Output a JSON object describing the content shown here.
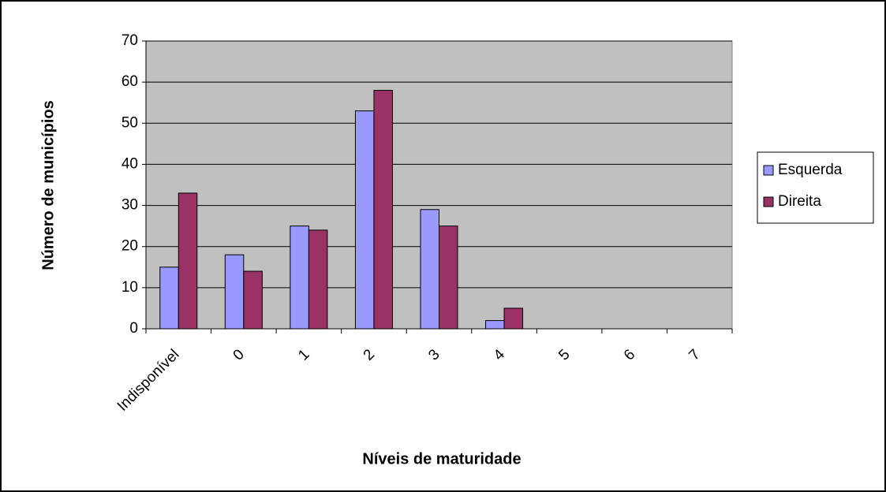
{
  "chart_data": {
    "type": "bar",
    "x_label": "Níveis de maturidade",
    "y_label": "Número de municípios",
    "categories": [
      "Indisponível",
      "0",
      "1",
      "2",
      "3",
      "4",
      "5",
      "6",
      "7"
    ],
    "series": [
      {
        "name": "Esquerda",
        "color": "#9999ff",
        "values": [
          15,
          18,
          25,
          53,
          29,
          2,
          0,
          0,
          0
        ]
      },
      {
        "name": "Direita",
        "color": "#993366",
        "values": [
          33,
          14,
          24,
          58,
          25,
          5,
          0,
          0,
          0
        ]
      }
    ],
    "ylim": [
      0,
      70
    ],
    "yticks": [
      0,
      10,
      20,
      30,
      40,
      50,
      60,
      70
    ],
    "grid": true,
    "legend": "right"
  }
}
